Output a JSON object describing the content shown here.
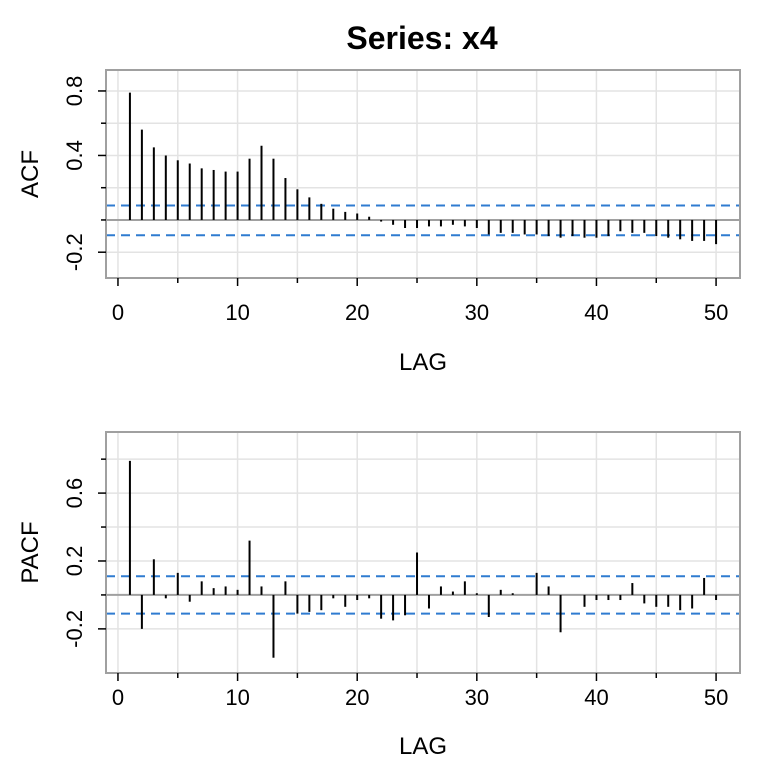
{
  "title": "Series:  x4",
  "colors": {
    "grid": "#e3e3e3",
    "frame": "#a0a0a0",
    "bar": "#000000",
    "conf": "#2f7bd0",
    "zero": "#a0a0a0"
  },
  "chart_data": [
    {
      "type": "bar",
      "name": "ACF",
      "xlabel": "LAG",
      "ylabel": "ACF",
      "xlim": [
        -1,
        52
      ],
      "ylim": [
        -0.36,
        0.93
      ],
      "xticks": [
        0,
        10,
        20,
        30,
        40,
        50
      ],
      "xtick_labels": [
        "0",
        "10",
        "20",
        "30",
        "40",
        "50"
      ],
      "yticks": [
        -0.2,
        0.4,
        0.8
      ],
      "ytick_labels": [
        "-0.2",
        "0.4",
        "0.8"
      ],
      "yminor": [
        0.0,
        0.2,
        0.6
      ],
      "grid": true,
      "confidence_band": [
        -0.095,
        0.09
      ],
      "lags": [
        1,
        2,
        3,
        4,
        5,
        6,
        7,
        8,
        9,
        10,
        11,
        12,
        13,
        14,
        15,
        16,
        17,
        18,
        19,
        20,
        21,
        22,
        23,
        24,
        25,
        26,
        27,
        28,
        29,
        30,
        31,
        32,
        33,
        34,
        35,
        36,
        37,
        38,
        39,
        40,
        41,
        42,
        43,
        44,
        45,
        46,
        47,
        48,
        49,
        50
      ],
      "values": [
        0.79,
        0.56,
        0.45,
        0.4,
        0.37,
        0.35,
        0.32,
        0.31,
        0.3,
        0.3,
        0.38,
        0.46,
        0.38,
        0.26,
        0.19,
        0.14,
        0.1,
        0.07,
        0.05,
        0.04,
        0.02,
        -0.01,
        -0.03,
        -0.05,
        -0.05,
        -0.04,
        -0.04,
        -0.03,
        -0.04,
        -0.05,
        -0.09,
        -0.08,
        -0.08,
        -0.09,
        -0.09,
        -0.1,
        -0.11,
        -0.1,
        -0.11,
        -0.11,
        -0.1,
        -0.07,
        -0.08,
        -0.08,
        -0.1,
        -0.11,
        -0.12,
        -0.13,
        -0.13,
        -0.15
      ]
    },
    {
      "type": "bar",
      "name": "PACF",
      "xlabel": "LAG",
      "ylabel": "PACF",
      "xlim": [
        -1,
        52
      ],
      "ylim": [
        -0.46,
        0.96
      ],
      "xticks": [
        0,
        10,
        20,
        30,
        40,
        50
      ],
      "xtick_labels": [
        "0",
        "10",
        "20",
        "30",
        "40",
        "50"
      ],
      "yticks": [
        -0.2,
        0.2,
        0.6
      ],
      "ytick_labels": [
        "-0.2",
        "0.2",
        "0.6"
      ],
      "yminor": [
        0.0,
        0.4,
        0.8
      ],
      "grid": true,
      "confidence_band": [
        -0.11,
        0.11
      ],
      "lags": [
        1,
        2,
        3,
        4,
        5,
        6,
        7,
        8,
        9,
        10,
        11,
        12,
        13,
        14,
        15,
        16,
        17,
        18,
        19,
        20,
        21,
        22,
        23,
        24,
        25,
        26,
        27,
        28,
        29,
        30,
        31,
        32,
        33,
        34,
        35,
        36,
        37,
        38,
        39,
        40,
        41,
        42,
        43,
        44,
        45,
        46,
        47,
        48,
        49,
        50
      ],
      "values": [
        0.79,
        -0.2,
        0.21,
        -0.02,
        0.13,
        -0.04,
        0.08,
        0.04,
        0.05,
        0.03,
        0.32,
        0.05,
        -0.37,
        0.08,
        -0.11,
        -0.1,
        -0.09,
        -0.02,
        -0.07,
        -0.03,
        -0.02,
        -0.14,
        -0.15,
        -0.12,
        0.25,
        -0.08,
        0.05,
        0.02,
        0.08,
        0.01,
        -0.13,
        0.03,
        0.01,
        0.0,
        0.13,
        0.05,
        -0.22,
        0.0,
        -0.07,
        -0.03,
        -0.03,
        -0.03,
        0.07,
        -0.05,
        -0.07,
        -0.07,
        -0.09,
        -0.08,
        0.1,
        -0.03
      ]
    }
  ]
}
